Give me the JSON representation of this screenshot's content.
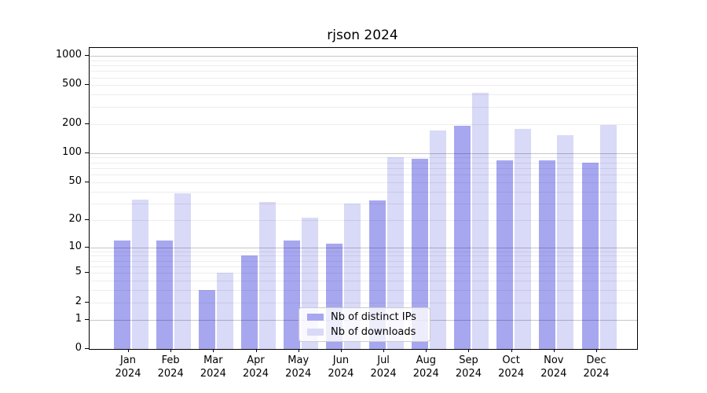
{
  "title": "rjson 2024",
  "colors": {
    "ips_bar": "#a7a7f0",
    "downloads_bar": "#d9d9f8",
    "grid_major": "rgba(0,0,0,0.22)",
    "grid_minor": "rgba(0,0,0,0.07)",
    "axis": "#000000",
    "legend_border": "#cccccc"
  },
  "chart_data": {
    "type": "bar",
    "title": "rjson 2024",
    "categories": [
      "Jan",
      "Feb",
      "Mar",
      "Apr",
      "May",
      "Jun",
      "Jul",
      "Aug",
      "Sep",
      "Oct",
      "Nov",
      "Dec"
    ],
    "category_year": "2024",
    "series": [
      {
        "name": "Nb of distinct IPs",
        "color": "#a7a7f0",
        "values": [
          12,
          12,
          3,
          8,
          12,
          11,
          32,
          88,
          192,
          84,
          84,
          80
        ]
      },
      {
        "name": "Nb of downloads",
        "color": "#d9d9f8",
        "values": [
          33,
          38,
          5,
          31,
          21,
          30,
          90,
          172,
          415,
          178,
          152,
          195
        ]
      }
    ],
    "xlabel": "",
    "ylabel": "",
    "yscale": "log1p",
    "ylim": [
      0,
      1000
    ],
    "yticks": [
      0,
      1,
      2,
      5,
      10,
      20,
      50,
      100,
      200,
      500,
      1000
    ],
    "major_grid_values": [
      1,
      10,
      100,
      1000
    ],
    "grid": true,
    "legend_position": "lower center"
  }
}
